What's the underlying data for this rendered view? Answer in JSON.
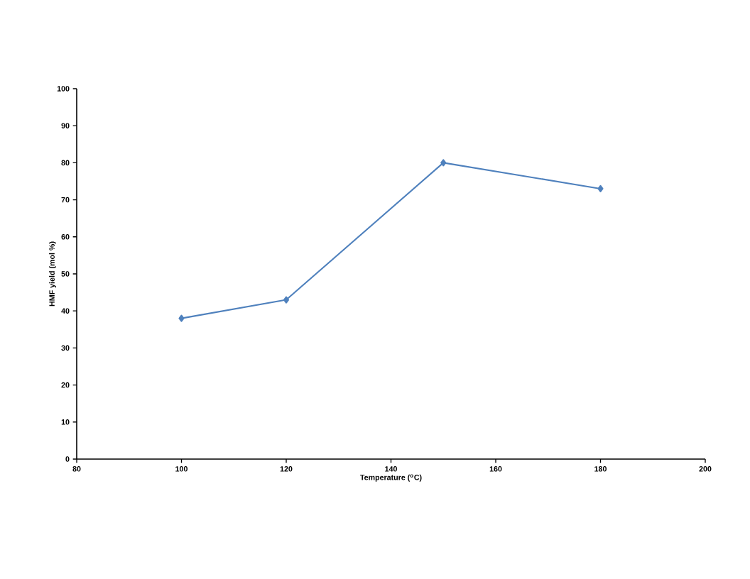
{
  "chart_data": {
    "type": "line",
    "xlabel": "Temperature ($^{o}$C)",
    "ylabel": "HMF yield (mol %)",
    "x": [
      100,
      120,
      150,
      180
    ],
    "series": [
      {
        "color": "#4f81bd",
        "values": [
          38,
          43,
          80,
          73
        ]
      }
    ],
    "xlim": [
      80,
      200
    ],
    "xticks": [
      80,
      100,
      120,
      140,
      160,
      180,
      200
    ],
    "ylim": [
      0,
      100
    ],
    "yticks": [
      0,
      10,
      20,
      30,
      40,
      50,
      60,
      70,
      80,
      90,
      100
    ],
    "marker": "diamond",
    "line_style": "solid",
    "grid": false
  }
}
